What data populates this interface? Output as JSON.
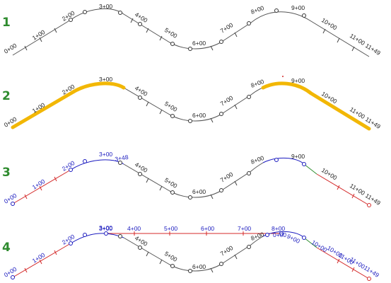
{
  "colors": {
    "step_number": "#2e8b2e",
    "alignment": "#555555",
    "highlight": "#f2b705",
    "tangent": "#d42a2a",
    "curve": "#1a1abf",
    "spiral": "#2f8f2f"
  },
  "steps": [
    {
      "number": "1",
      "labels": [
        "0+00",
        "1+00",
        "2+00",
        "3+00",
        "4+00",
        "5+00",
        "6+00",
        "7+00",
        "8+00",
        "9+00",
        "10+00",
        "11+00",
        "11+49"
      ]
    },
    {
      "number": "2",
      "labels": [
        "0+00",
        "1+00",
        "2+00",
        "3+00",
        "4+00",
        "5+00",
        "6+00",
        "7+00",
        "8+00",
        "9+00",
        "10+00",
        "11+00",
        "11+49"
      ]
    },
    {
      "number": "3",
      "labels": [
        "0+00",
        "1+00",
        "2+00",
        "3+00",
        "3+48",
        "4+00",
        "5+00",
        "6+00",
        "7+00",
        "8+00",
        "9+00",
        "10+00",
        "11+00",
        "11+49"
      ]
    },
    {
      "number": "4",
      "labels": [
        "0+00",
        "1+00",
        "2+00",
        "3+00",
        "4+00",
        "5+00",
        "6+00",
        "7+00",
        "8+00",
        "9+00",
        "10+00",
        "11+00",
        "11+49"
      ],
      "new_alignment_labels": [
        "3+00",
        "4+00",
        "5+00",
        "6+00",
        "7+00",
        "8+00",
        "0+00",
        "10+00",
        "11+00"
      ]
    }
  ]
}
